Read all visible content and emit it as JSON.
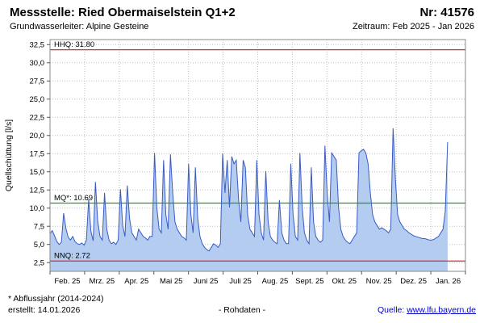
{
  "header": {
    "title": "Messstelle: Ried Obermaiselstein Q1+2",
    "number_label": "Nr: 41576",
    "subtitle": "Grundwasserleiter: Alpine Gesteine",
    "period": "Zeitraum: Feb 2025 - Jan 2026"
  },
  "chart_data": {
    "type": "area",
    "title": "Messstelle: Ried Obermaiselstein Q1+2",
    "ylabel": "Quellschüttung [l/s]",
    "ylim": [
      1.3,
      33.2
    ],
    "yticks": [
      2.5,
      5.0,
      7.5,
      10.0,
      12.5,
      15.0,
      17.5,
      20.0,
      22.5,
      25.0,
      27.5,
      30.0,
      32.5
    ],
    "ytick_labels": [
      "2,5",
      "5,0",
      "7,5",
      "10,0",
      "12,5",
      "15,0",
      "17,5",
      "20,0",
      "22,5",
      "25,0",
      "27,5",
      "30,0",
      "32,5"
    ],
    "x_labels": [
      "Feb. 25",
      "Mrz. 25",
      "Apr. 25",
      "Mai 25",
      "Juni 25",
      "Juli 25",
      "Aug. 25",
      "Sept. 25",
      "Okt. 25",
      "Nov. 25",
      "Dez. 25",
      "Jan. 26"
    ],
    "months_total": 12,
    "x_fraction_end": 0.957,
    "grid": true,
    "legend": "none",
    "area_fill": "#b3ccf0",
    "line_color": "#3a5bc7",
    "reference_lines": [
      {
        "name": "HHQ",
        "label": "HHQ: 31.80",
        "value": 31.8,
        "color": "#e02b2b"
      },
      {
        "name": "MQ",
        "label": "MQ*: 10.69",
        "value": 10.69,
        "color": "#1e9e1e"
      },
      {
        "name": "NNQ",
        "label": "NNQ: 2.72",
        "value": 2.72,
        "color": "#e02b2b"
      }
    ],
    "series": [
      {
        "name": "Quellschüttung Rohdaten",
        "values": [
          6.5,
          6.9,
          6.2,
          5.4,
          5.0,
          5.3,
          9.3,
          7.2,
          6.0,
          5.6,
          6.1,
          5.4,
          5.1,
          5.0,
          5.2,
          4.9,
          5.6,
          11.2,
          6.8,
          5.5,
          13.6,
          8.2,
          6.1,
          5.6,
          12.1,
          7.1,
          5.6,
          5.1,
          5.3,
          5.0,
          5.6,
          12.6,
          7.6,
          6.1,
          13.1,
          8.6,
          6.6,
          6.1,
          5.6,
          7.1,
          6.6,
          6.1,
          5.9,
          5.6,
          6.1,
          6.1,
          17.6,
          10.1,
          7.1,
          6.6,
          16.6,
          9.1,
          7.1,
          17.4,
          12.1,
          8.1,
          7.1,
          6.6,
          6.1,
          5.9,
          5.6,
          16.1,
          9.1,
          6.6,
          15.6,
          8.6,
          6.1,
          5.1,
          4.6,
          4.3,
          4.1,
          4.6,
          5.1,
          4.9,
          4.6,
          5.1,
          17.5,
          12.1,
          16.6,
          10.1,
          17.1,
          16.1,
          16.6,
          11.1,
          8.1,
          16.6,
          15.6,
          9.1,
          7.1,
          6.6,
          6.1,
          16.6,
          9.1,
          6.6,
          5.6,
          15.1,
          8.1,
          6.1,
          5.6,
          5.3,
          5.1,
          11.1,
          6.6,
          5.6,
          5.1,
          5.1,
          16.1,
          9.1,
          6.1,
          5.6,
          17.6,
          10.1,
          6.6,
          5.6,
          5.1,
          15.6,
          8.1,
          6.1,
          5.6,
          5.3,
          5.6,
          18.6,
          12.1,
          8.1,
          17.6,
          17.1,
          16.6,
          10.1,
          7.1,
          6.1,
          5.6,
          5.3,
          5.1,
          5.6,
          6.1,
          6.6,
          17.6,
          17.9,
          18.1,
          17.6,
          16.1,
          12.1,
          9.1,
          8.1,
          7.6,
          7.1,
          7.3,
          7.1,
          6.9,
          6.6,
          7.1,
          21.0,
          14.1,
          9.1,
          8.1,
          7.6,
          7.1,
          6.9,
          6.6,
          6.4,
          6.2,
          6.1,
          6.0,
          5.9,
          5.8,
          5.8,
          5.7,
          5.6,
          5.6,
          5.7,
          5.9,
          6.1,
          6.6,
          7.1,
          9.6,
          19.1
        ]
      }
    ]
  },
  "footer": {
    "note": "* Abflussjahr (2014-2024)",
    "created": "erstellt: 14.01.2026",
    "center": "- Rohdaten -",
    "source_label": "Quelle: ",
    "source_link": "www.lfu.bayern.de"
  }
}
